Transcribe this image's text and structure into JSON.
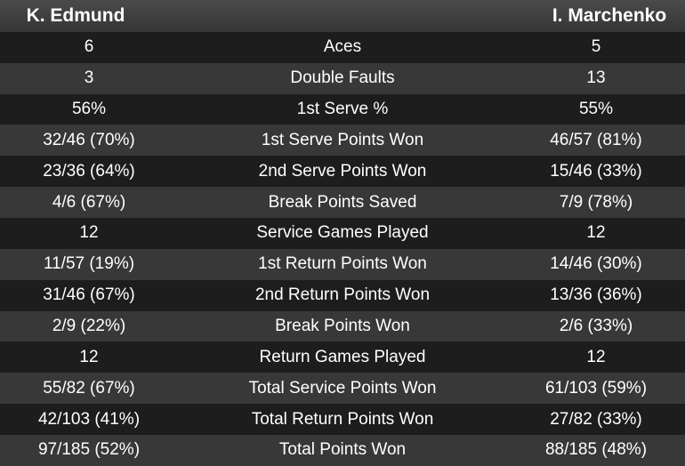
{
  "players": {
    "left": "K. Edmund",
    "right": "I. Marchenko"
  },
  "stats": [
    {
      "label": "Aces",
      "left": "6",
      "right": "5"
    },
    {
      "label": "Double Faults",
      "left": "3",
      "right": "13"
    },
    {
      "label": "1st Serve %",
      "left": "56%",
      "right": "55%"
    },
    {
      "label": "1st Serve Points Won",
      "left": "32/46 (70%)",
      "right": "46/57 (81%)"
    },
    {
      "label": "2nd Serve Points Won",
      "left": "23/36 (64%)",
      "right": "15/46 (33%)"
    },
    {
      "label": "Break Points Saved",
      "left": "4/6 (67%)",
      "right": "7/9 (78%)"
    },
    {
      "label": "Service Games Played",
      "left": "12",
      "right": "12"
    },
    {
      "label": "1st Return Points Won",
      "left": "11/57 (19%)",
      "right": "14/46 (30%)"
    },
    {
      "label": "2nd Return Points Won",
      "left": "31/46 (67%)",
      "right": "13/36 (36%)"
    },
    {
      "label": "Break Points Won",
      "left": "2/9 (22%)",
      "right": "2/6 (33%)"
    },
    {
      "label": "Return Games Played",
      "left": "12",
      "right": "12"
    },
    {
      "label": "Total Service Points Won",
      "left": "55/82 (67%)",
      "right": "61/103 (59%)"
    },
    {
      "label": "Total Return Points Won",
      "left": "42/103 (41%)",
      "right": "27/82 (33%)"
    },
    {
      "label": "Total Points Won",
      "left": "97/185 (52%)",
      "right": "88/185 (48%)"
    }
  ]
}
